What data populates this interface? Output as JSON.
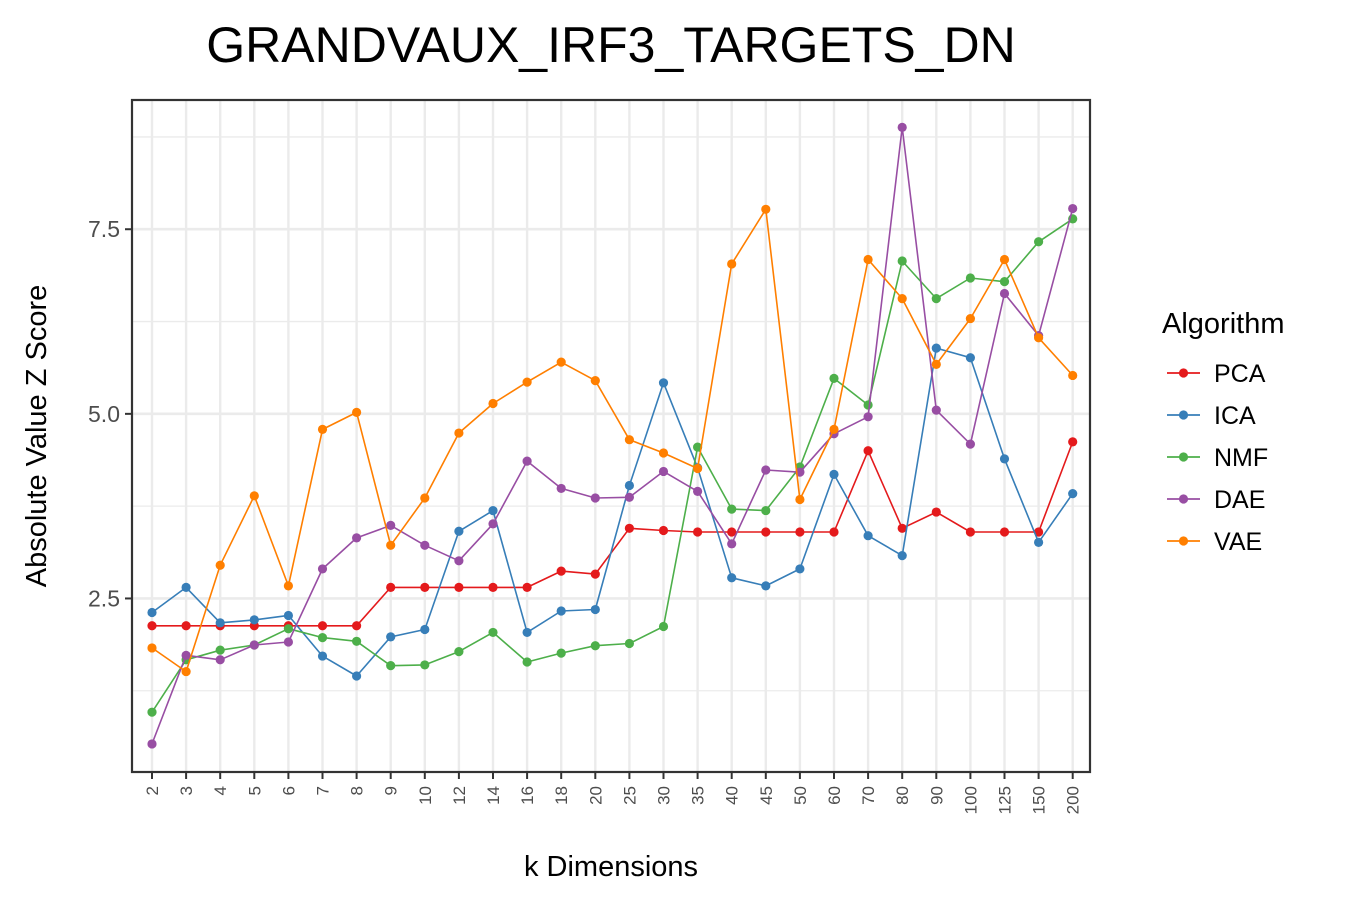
{
  "chart_data": {
    "type": "line",
    "title": "GRANDVAUX_IRF3_TARGETS_DN",
    "xlabel": "k Dimensions",
    "ylabel": "Absolute Value Z Score",
    "categories": [
      "2",
      "3",
      "4",
      "5",
      "6",
      "7",
      "8",
      "9",
      "10",
      "12",
      "14",
      "16",
      "18",
      "20",
      "25",
      "30",
      "35",
      "40",
      "45",
      "50",
      "60",
      "70",
      "80",
      "90",
      "100",
      "125",
      "150",
      "200"
    ],
    "yticks": [
      "2.5",
      "5.0",
      "7.5"
    ],
    "ylim": [
      0.15,
      9.25
    ],
    "grid": true,
    "legend": {
      "title": "Algorithm",
      "placement": "right"
    },
    "series": [
      {
        "name": "PCA",
        "color": "#e41a1c",
        "values": [
          2.13,
          2.13,
          2.13,
          2.13,
          2.13,
          2.13,
          2.13,
          2.65,
          2.65,
          2.65,
          2.65,
          2.65,
          2.87,
          2.83,
          3.45,
          3.42,
          3.4,
          3.4,
          3.4,
          3.4,
          3.4,
          4.5,
          3.45,
          3.67,
          3.4,
          3.4,
          3.4,
          4.62
        ]
      },
      {
        "name": "ICA",
        "color": "#377eb8",
        "values": [
          2.31,
          2.65,
          2.17,
          2.21,
          2.27,
          1.72,
          1.45,
          1.98,
          2.08,
          3.41,
          3.69,
          2.04,
          2.33,
          2.35,
          4.03,
          5.42,
          4.27,
          2.78,
          2.67,
          2.9,
          4.18,
          3.35,
          3.08,
          5.89,
          5.76,
          4.39,
          3.26,
          3.92
        ]
      },
      {
        "name": "NMF",
        "color": "#4daf4a",
        "values": [
          0.96,
          1.67,
          1.8,
          1.87,
          2.09,
          1.97,
          1.92,
          1.59,
          1.6,
          1.78,
          2.04,
          1.64,
          1.76,
          1.86,
          1.89,
          2.12,
          4.55,
          3.71,
          3.69,
          4.28,
          5.48,
          5.12,
          7.07,
          6.56,
          6.84,
          6.79,
          7.33,
          7.64
        ]
      },
      {
        "name": "DAE",
        "color": "#984ea3",
        "values": [
          0.53,
          1.73,
          1.67,
          1.87,
          1.91,
          2.9,
          3.32,
          3.49,
          3.22,
          3.01,
          3.51,
          4.36,
          3.99,
          3.86,
          3.87,
          4.22,
          3.95,
          3.24,
          4.24,
          4.21,
          4.73,
          4.96,
          8.88,
          5.05,
          4.59,
          6.63,
          6.06,
          7.78
        ]
      },
      {
        "name": "VAE",
        "color": "#ff7f00",
        "values": [
          1.83,
          1.51,
          2.95,
          3.89,
          2.67,
          4.79,
          5.02,
          3.22,
          3.86,
          4.74,
          5.14,
          5.43,
          5.7,
          5.45,
          4.65,
          4.47,
          4.26,
          7.03,
          7.77,
          3.84,
          4.79,
          7.09,
          6.56,
          5.67,
          6.29,
          7.09,
          6.03,
          5.52
        ]
      }
    ]
  }
}
